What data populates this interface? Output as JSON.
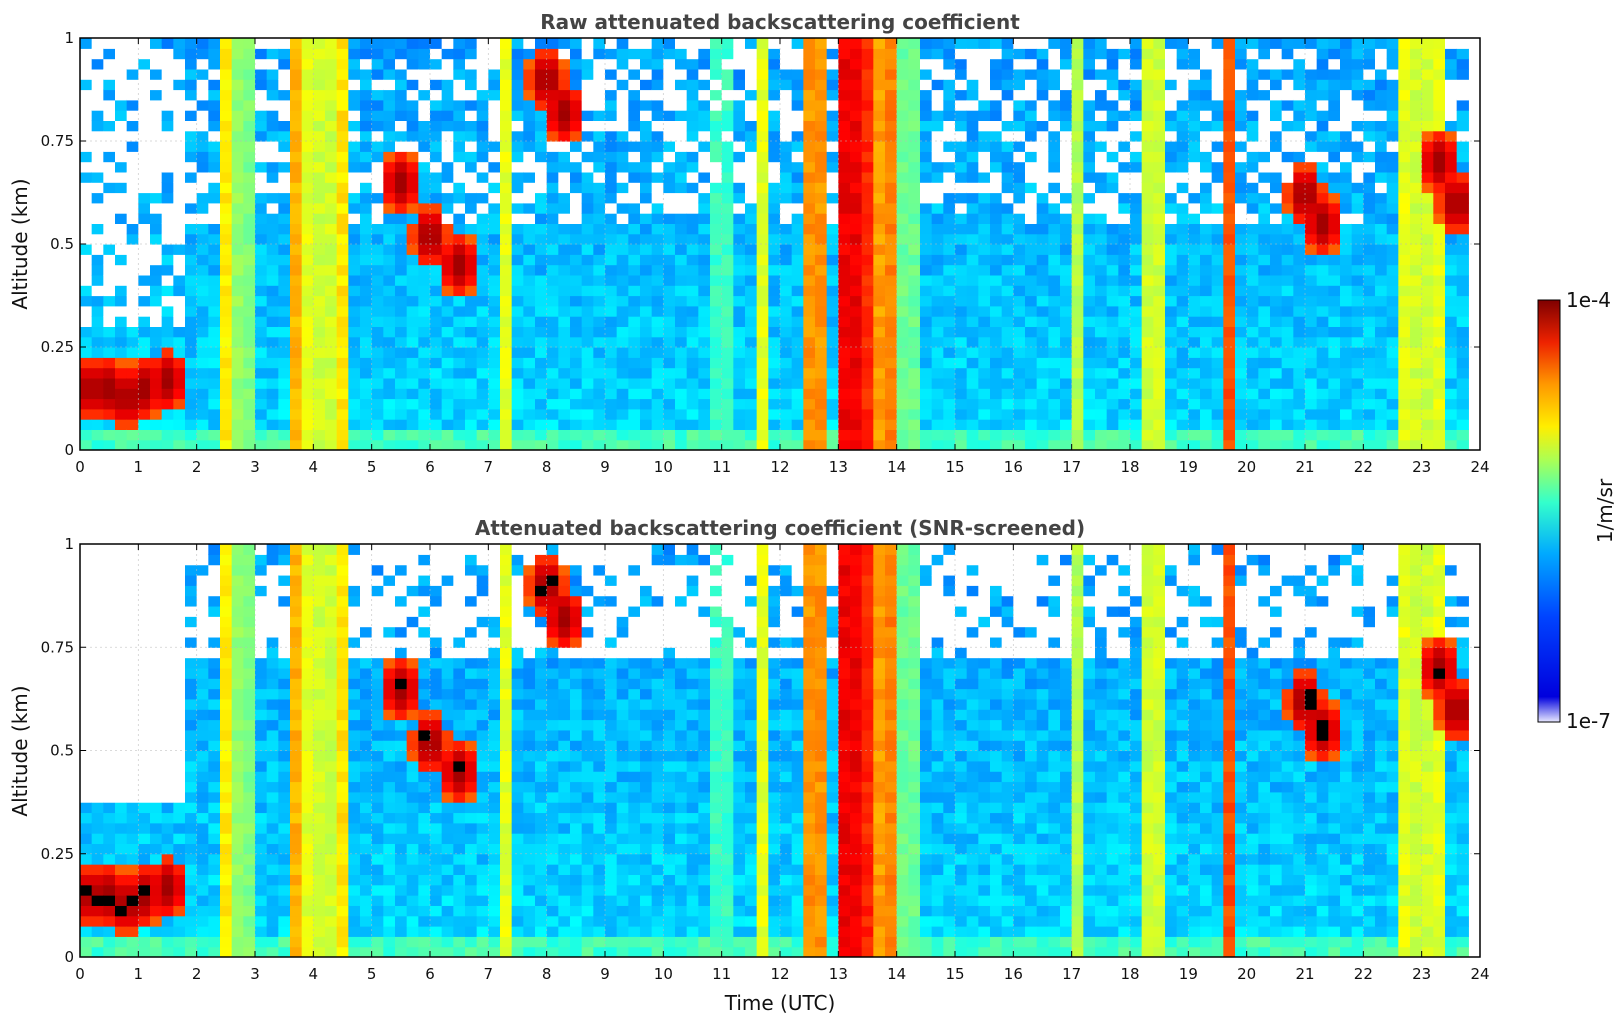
{
  "chart_data": [
    {
      "type": "heatmap",
      "title": "Raw attenuated backscattering coefficient",
      "ylabel": "Altitude (km)",
      "xlabel": "",
      "xlim": [
        0,
        24
      ],
      "ylim": [
        0,
        1
      ],
      "xticks": [
        "0",
        "1",
        "2",
        "3",
        "4",
        "5",
        "6",
        "7",
        "8",
        "9",
        "10",
        "11",
        "12",
        "13",
        "14",
        "15",
        "16",
        "17",
        "18",
        "19",
        "20",
        "21",
        "22",
        "23",
        "24"
      ],
      "yticks": [
        "0",
        "0.25",
        "0.5",
        "0.75",
        "1"
      ],
      "grid": true,
      "screened": false
    },
    {
      "type": "heatmap",
      "title": "Attenuated backscattering coefficient (SNR-screened)",
      "ylabel": "Altitude (km)",
      "xlabel": "Time (UTC)",
      "xlim": [
        0,
        24
      ],
      "ylim": [
        0,
        1
      ],
      "xticks": [
        "0",
        "1",
        "2",
        "3",
        "4",
        "5",
        "6",
        "7",
        "8",
        "9",
        "10",
        "11",
        "12",
        "13",
        "14",
        "15",
        "16",
        "17",
        "18",
        "19",
        "20",
        "21",
        "22",
        "23",
        "24"
      ],
      "yticks": [
        "0",
        "0.25",
        "0.5",
        "0.75",
        "1"
      ],
      "grid": true,
      "screened": true
    }
  ],
  "colorbar": {
    "label": "1/m/sr",
    "max_label": "1e-4",
    "min_label": "1e-7",
    "colormap": [
      "#7f0000",
      "#cc0000",
      "#ff3300",
      "#ff9900",
      "#ffee00",
      "#aaff55",
      "#33ffcc",
      "#00ccff",
      "#0077ff",
      "#0033ff",
      "#0000dd",
      "#e8e8ff"
    ]
  }
}
